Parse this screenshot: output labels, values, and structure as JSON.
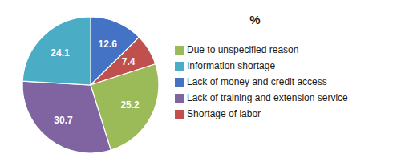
{
  "chart_data": {
    "type": "pie",
    "title": "%",
    "categories": [
      "Lack of money and credit access",
      "Shortage of labor",
      "Due to unspecified reason",
      "Lack of training and extension service",
      "Information shortage"
    ],
    "values": [
      12.6,
      7.4,
      25.2,
      30.7,
      24.1
    ],
    "colors": [
      "#4472C4",
      "#C0504D",
      "#9BBB59",
      "#8064A2",
      "#4BACC6"
    ],
    "data_labels": true,
    "legend": "right"
  }
}
